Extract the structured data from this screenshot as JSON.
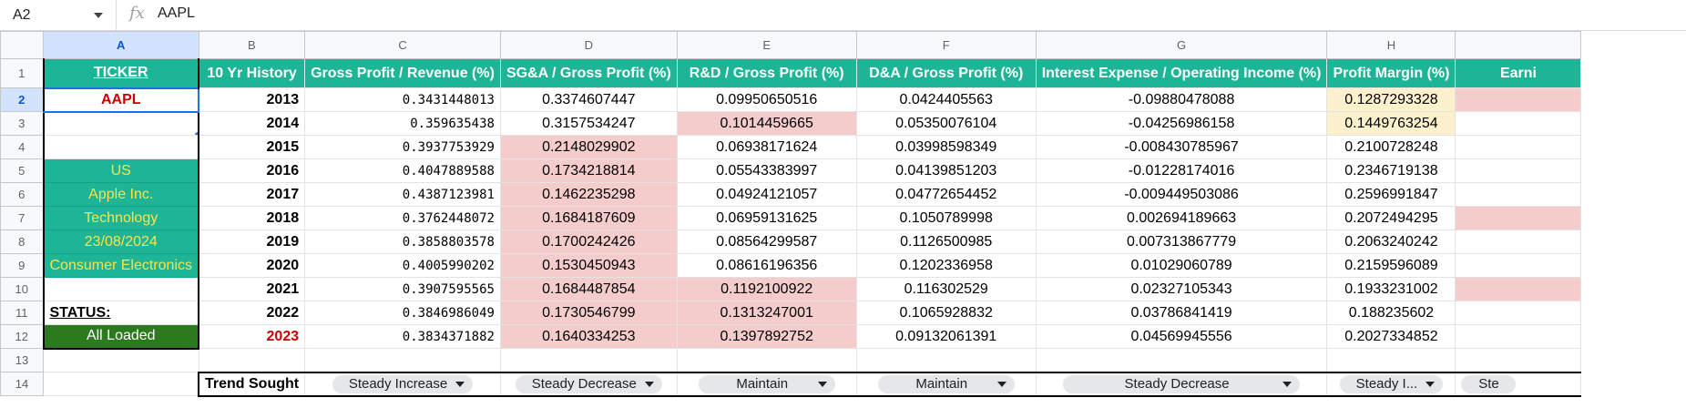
{
  "formula_bar": {
    "name_box": "A2",
    "fx_label": "fx",
    "content": "AAPL"
  },
  "columns": [
    "A",
    "B",
    "C",
    "D",
    "E",
    "F",
    "G",
    "H",
    ""
  ],
  "row_numbers": [
    "1",
    "2",
    "3",
    "4",
    "5",
    "6",
    "7",
    "8",
    "9",
    "10",
    "11",
    "12",
    "13",
    "14"
  ],
  "header_row": [
    "TICKER",
    "10 Yr History",
    "Gross Profit / Revenue (%)",
    "SG&A / Gross Profit (%)",
    "R&D / Gross Profit (%)",
    "D&A / Gross Profit (%)",
    "Interest Expense / Operating Income (%)",
    "Profit Margin (%)",
    "Earni"
  ],
  "col_a": {
    "ticker": "AAPL",
    "country": "US",
    "company": "Apple Inc.",
    "sector": "Technology",
    "date": "23/08/2024",
    "industry": "Consumer Electronics",
    "status_label": "STATUS:",
    "status_value": "All Loaded"
  },
  "rows": [
    {
      "year": "2013",
      "c": "0.3431448013",
      "d": "0.3374607447",
      "e": "0.09950650516",
      "f": "0.0424405563",
      "g": "-0.09880478088",
      "h": "0.1287293328"
    },
    {
      "year": "2014",
      "c": "0.359635438",
      "d": "0.3157534247",
      "e": "0.1014459665",
      "f": "0.05350076104",
      "g": "-0.04256986158",
      "h": "0.1449763254"
    },
    {
      "year": "2015",
      "c": "0.3937753929",
      "d": "0.2148029902",
      "e": "0.06938171624",
      "f": "0.03998598349",
      "g": "-0.008430785967",
      "h": "0.2100728248"
    },
    {
      "year": "2016",
      "c": "0.4047889588",
      "d": "0.1734218814",
      "e": "0.05543383997",
      "f": "0.04139851203",
      "g": "-0.01228174016",
      "h": "0.2346719138"
    },
    {
      "year": "2017",
      "c": "0.4387123981",
      "d": "0.1462235298",
      "e": "0.04924121057",
      "f": "0.04772654452",
      "g": "-0.009449503086",
      "h": "0.2596991847"
    },
    {
      "year": "2018",
      "c": "0.3762448072",
      "d": "0.1684187609",
      "e": "0.06959131625",
      "f": "0.1050789998",
      "g": "0.002694189663",
      "h": "0.2072494295"
    },
    {
      "year": "2019",
      "c": "0.3858803578",
      "d": "0.1700242426",
      "e": "0.08564299587",
      "f": "0.1126500985",
      "g": "0.007313867779",
      "h": "0.2063240242"
    },
    {
      "year": "2020",
      "c": "0.4005990202",
      "d": "0.1530450943",
      "e": "0.08616196356",
      "f": "0.1202336958",
      "g": "0.01029060789",
      "h": "0.2159596089"
    },
    {
      "year": "2021",
      "c": "0.3907595565",
      "d": "0.1684487854",
      "e": "0.1192100922",
      "f": "0.116302529",
      "g": "0.02327105343",
      "h": "0.1933231002"
    },
    {
      "year": "2022",
      "c": "0.3846986049",
      "d": "0.1730546799",
      "e": "0.1313247001",
      "f": "0.1065928832",
      "g": "0.03786841419",
      "h": "0.188235602"
    },
    {
      "year": "2023",
      "c": "0.3834371882",
      "d": "0.1640334253",
      "e": "0.1397892752",
      "f": "0.09132061391",
      "g": "0.04569945556",
      "h": "0.2027334852"
    }
  ],
  "trend_row": {
    "label": "Trend Sought",
    "values": [
      "Steady Increase",
      "Steady Decrease",
      "Maintain",
      "Maintain",
      "Steady Decrease",
      "Steady I...",
      "Ste"
    ]
  },
  "colors": {
    "header_green": "#1db595",
    "info_text_yellow": "#fde24b",
    "flag_pink": "#f4cccc",
    "flag_yellow": "#fdf0cc",
    "status_green": "#2b7a1e",
    "selection_blue": "#1a73e8"
  }
}
